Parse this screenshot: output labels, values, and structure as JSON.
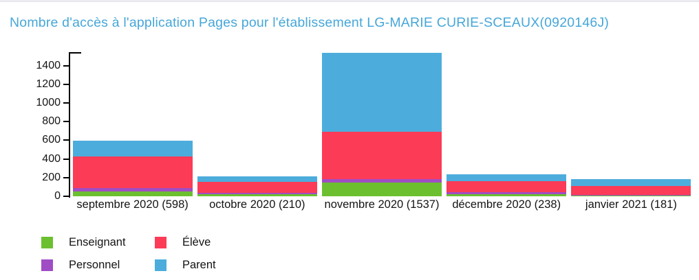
{
  "title": "Nombre d'accès à l'application Pages pour l'établissement LG-MARIE CURIE-SCEAUX(0920146J)",
  "title_color": "#46a7d9",
  "chart_data": {
    "type": "bar",
    "stacked": true,
    "title": "Nombre d'accès à l'application Pages pour l'établissement LG-MARIE CURIE-SCEAUX(0920146J)",
    "categories": [
      "septembre 2020 (598)",
      "octobre 2020 (210)",
      "novembre 2020 (1537)",
      "décembre 2020 (238)",
      "janvier 2021 (181)"
    ],
    "totals": [
      598,
      210,
      1537,
      238,
      181
    ],
    "series": [
      {
        "name": "Enseignant",
        "color": "#6cc02f",
        "values": [
          50,
          22,
          145,
          24,
          11
        ]
      },
      {
        "name": "Personnel",
        "color": "#a04dc5",
        "values": [
          38,
          18,
          42,
          22,
          2
        ]
      },
      {
        "name": "Élève",
        "color": "#fc3b57",
        "values": [
          337,
          118,
          508,
          115,
          98
        ]
      },
      {
        "name": "Parent",
        "color": "#4cadtc_fix",
        "values": [
          173,
          52,
          842,
          77,
          70
        ]
      }
    ],
    "ylim": [
      0,
      1545
    ],
    "yticks": [
      0,
      200,
      400,
      600,
      800,
      1000,
      1200,
      1400
    ],
    "xlabel": "",
    "ylabel": "",
    "grid": false,
    "legend_position": "bottom-left",
    "axis_color": "#000000"
  },
  "legend": {
    "order": [
      0,
      2,
      1,
      3
    ]
  }
}
